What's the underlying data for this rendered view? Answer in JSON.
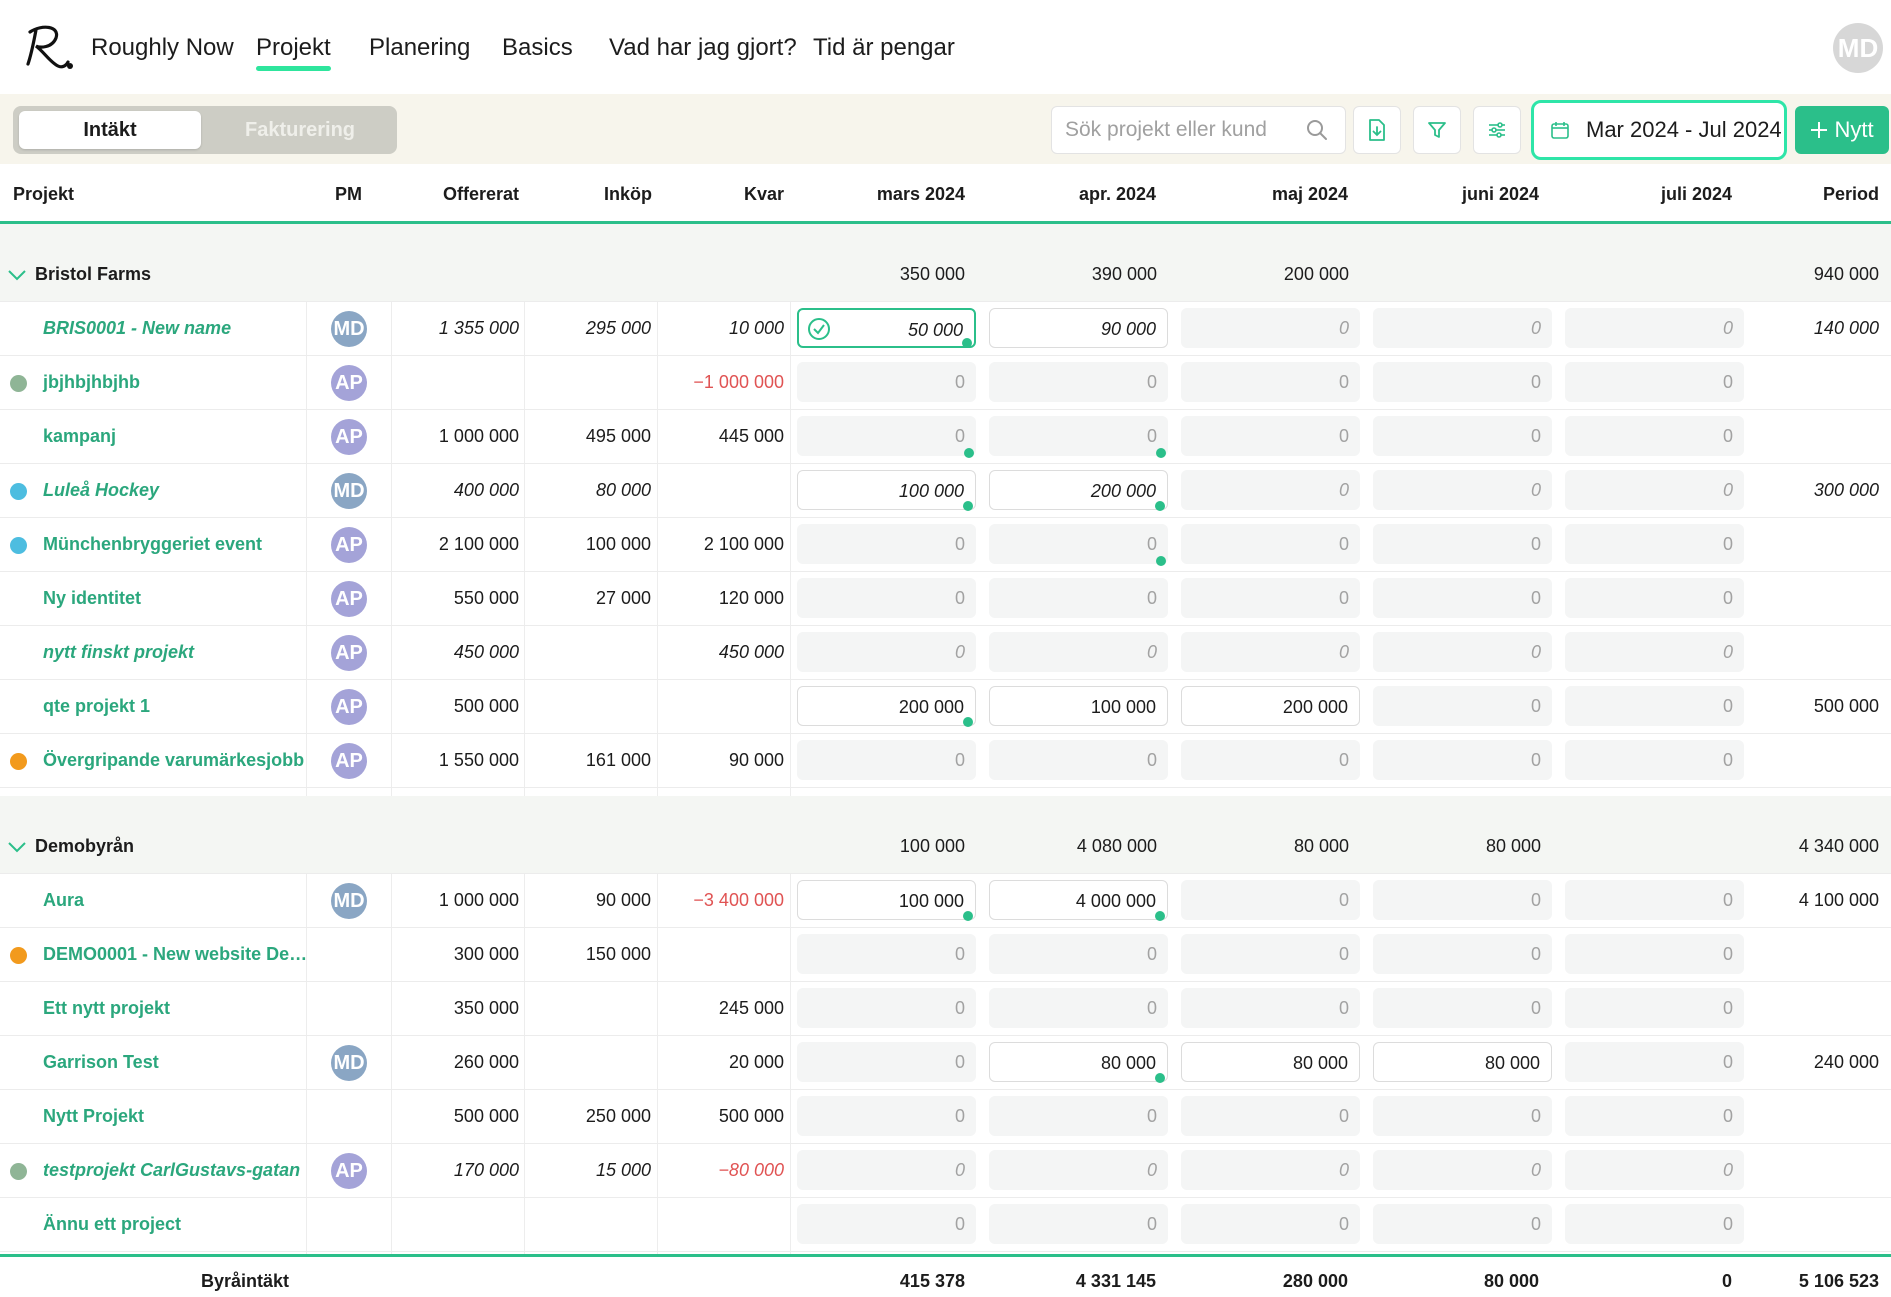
{
  "nav": {
    "logo_text": "R.",
    "items": [
      "Roughly Now",
      "Projekt",
      "Planering",
      "Basics",
      "Vad har jag gjort?",
      "Tid är pengar"
    ],
    "active_index": 1,
    "user_initials": "MD"
  },
  "toolbar": {
    "segment": [
      "Intäkt",
      "Fakturering"
    ],
    "search_placeholder": "Sök projekt eller kund",
    "date_range": "Mar 2024 - Jul 2024",
    "new_label": "Nytt"
  },
  "columns": [
    "Projekt",
    "PM",
    "Offererat",
    "Inköp",
    "Kvar",
    "mars 2024",
    "apr. 2024",
    "maj 2024",
    "juni 2024",
    "juli 2024",
    "Period"
  ],
  "colors": {
    "accent": "#2bbf8a",
    "negative": "#e05353",
    "avatar_md": "#8aa6c4",
    "avatar_ap": "#a4a3d8",
    "dot_green": "#8fb596",
    "dot_blue": "#4dbde0",
    "dot_orange": "#f29a1d"
  },
  "groups": [
    {
      "name": "Bristol Farms",
      "totals": [
        "350 000",
        "390 000",
        "200 000",
        "",
        ""
      ],
      "period": "940 000",
      "rows": [
        {
          "name": "BRIS0001 - New name",
          "italic": true,
          "dot": "",
          "pm": "MD",
          "offererat": "1 355 000",
          "inkop": "295 000",
          "kvar": "10 000",
          "kvar_neg": false,
          "months": [
            {
              "v": "50 000",
              "filled": true,
              "clock": true,
              "check": true
            },
            {
              "v": "90 000",
              "filled": true
            },
            {
              "v": "0"
            },
            {
              "v": "0"
            },
            {
              "v": "0"
            }
          ],
          "period": "140 000"
        },
        {
          "name": "jbjhbjhbjhb",
          "italic": false,
          "dot": "green",
          "pm": "AP",
          "offererat": "",
          "inkop": "",
          "kvar": "−1 000 000",
          "kvar_neg": true,
          "months": [
            {
              "v": "0"
            },
            {
              "v": "0"
            },
            {
              "v": "0"
            },
            {
              "v": "0"
            },
            {
              "v": "0"
            }
          ],
          "period": ""
        },
        {
          "name": "kampanj",
          "italic": false,
          "dot": "",
          "pm": "AP",
          "offererat": "1 000 000",
          "inkop": "495 000",
          "kvar": "445 000",
          "kvar_neg": false,
          "months": [
            {
              "v": "0",
              "clock": true
            },
            {
              "v": "0",
              "clock": true
            },
            {
              "v": "0"
            },
            {
              "v": "0"
            },
            {
              "v": "0"
            }
          ],
          "period": ""
        },
        {
          "name": "Luleå Hockey",
          "italic": true,
          "dot": "blue",
          "pm": "MD",
          "offererat": "400 000",
          "inkop": "80 000",
          "kvar": "",
          "kvar_neg": false,
          "months": [
            {
              "v": "100 000",
              "filled": true,
              "clock": true
            },
            {
              "v": "200 000",
              "filled": true,
              "clock": true
            },
            {
              "v": "0"
            },
            {
              "v": "0"
            },
            {
              "v": "0"
            }
          ],
          "period": "300 000"
        },
        {
          "name": "Münchenbryggeriet event",
          "italic": false,
          "dot": "blue",
          "pm": "AP",
          "offererat": "2 100 000",
          "inkop": "100 000",
          "kvar": "2 100 000",
          "kvar_neg": false,
          "months": [
            {
              "v": "0"
            },
            {
              "v": "0",
              "clock": true
            },
            {
              "v": "0"
            },
            {
              "v": "0"
            },
            {
              "v": "0"
            }
          ],
          "period": ""
        },
        {
          "name": "Ny identitet",
          "italic": false,
          "dot": "",
          "pm": "AP",
          "offererat": "550 000",
          "inkop": "27 000",
          "kvar": "120 000",
          "kvar_neg": false,
          "months": [
            {
              "v": "0"
            },
            {
              "v": "0"
            },
            {
              "v": "0"
            },
            {
              "v": "0"
            },
            {
              "v": "0"
            }
          ],
          "period": ""
        },
        {
          "name": "nytt finskt projekt",
          "italic": true,
          "dot": "",
          "pm": "AP",
          "offererat": "450 000",
          "inkop": "",
          "kvar": "450 000",
          "kvar_neg": false,
          "months": [
            {
              "v": "0"
            },
            {
              "v": "0"
            },
            {
              "v": "0"
            },
            {
              "v": "0"
            },
            {
              "v": "0"
            }
          ],
          "period": ""
        },
        {
          "name": "qte projekt 1",
          "italic": false,
          "dot": "",
          "pm": "AP",
          "offererat": "500 000",
          "inkop": "",
          "kvar": "",
          "kvar_neg": false,
          "months": [
            {
              "v": "200 000",
              "filled": true,
              "clock": true
            },
            {
              "v": "100 000",
              "filled": true
            },
            {
              "v": "200 000",
              "filled": true
            },
            {
              "v": "0"
            },
            {
              "v": "0"
            }
          ],
          "period": "500 000"
        },
        {
          "name": "Övergripande varumärkesjobb",
          "italic": false,
          "dot": "orange",
          "pm": "AP",
          "offererat": "1 550 000",
          "inkop": "161 000",
          "kvar": "90 000",
          "kvar_neg": false,
          "months": [
            {
              "v": "0"
            },
            {
              "v": "0"
            },
            {
              "v": "0"
            },
            {
              "v": "0"
            },
            {
              "v": "0"
            }
          ],
          "period": ""
        }
      ]
    },
    {
      "name": "Demobyrån",
      "totals": [
        "100 000",
        "4 080 000",
        "80 000",
        "80 000",
        ""
      ],
      "period": "4 340 000",
      "rows": [
        {
          "name": "Aura",
          "italic": false,
          "dot": "",
          "pm": "MD",
          "offererat": "1 000 000",
          "inkop": "90 000",
          "kvar": "−3 400 000",
          "kvar_neg": true,
          "months": [
            {
              "v": "100 000",
              "filled": true,
              "clock": true
            },
            {
              "v": "4 000 000",
              "filled": true,
              "clock": true
            },
            {
              "v": "0"
            },
            {
              "v": "0"
            },
            {
              "v": "0"
            }
          ],
          "period": "4 100 000"
        },
        {
          "name": "DEMO0001 - New website De…",
          "italic": false,
          "dot": "orange",
          "pm": "",
          "offererat": "300 000",
          "inkop": "150 000",
          "kvar": "",
          "kvar_neg": false,
          "months": [
            {
              "v": "0"
            },
            {
              "v": "0"
            },
            {
              "v": "0"
            },
            {
              "v": "0"
            },
            {
              "v": "0"
            }
          ],
          "period": ""
        },
        {
          "name": "Ett nytt projekt",
          "italic": false,
          "dot": "",
          "pm": "",
          "offererat": "350 000",
          "inkop": "",
          "kvar": "245 000",
          "kvar_neg": false,
          "months": [
            {
              "v": "0"
            },
            {
              "v": "0"
            },
            {
              "v": "0"
            },
            {
              "v": "0"
            },
            {
              "v": "0"
            }
          ],
          "period": ""
        },
        {
          "name": "Garrison Test",
          "italic": false,
          "dot": "",
          "pm": "MD",
          "offererat": "260 000",
          "inkop": "",
          "kvar": "20 000",
          "kvar_neg": false,
          "months": [
            {
              "v": "0"
            },
            {
              "v": "80 000",
              "filled": true,
              "clock": true
            },
            {
              "v": "80 000",
              "filled": true
            },
            {
              "v": "80 000",
              "filled": true
            },
            {
              "v": "0"
            }
          ],
          "period": "240 000"
        },
        {
          "name": "Nytt Projekt",
          "italic": false,
          "dot": "",
          "pm": "",
          "offererat": "500 000",
          "inkop": "250 000",
          "kvar": "500 000",
          "kvar_neg": false,
          "months": [
            {
              "v": "0"
            },
            {
              "v": "0"
            },
            {
              "v": "0"
            },
            {
              "v": "0"
            },
            {
              "v": "0"
            }
          ],
          "period": ""
        },
        {
          "name": "testprojekt CarlGustavs-gatan",
          "italic": true,
          "dot": "green",
          "pm": "AP",
          "offererat": "170 000",
          "inkop": "15 000",
          "kvar": "−80 000",
          "kvar_neg": true,
          "months": [
            {
              "v": "0"
            },
            {
              "v": "0"
            },
            {
              "v": "0"
            },
            {
              "v": "0"
            },
            {
              "v": "0"
            }
          ],
          "period": ""
        },
        {
          "name": "Ännu ett project",
          "italic": false,
          "dot": "",
          "pm": "",
          "offererat": "",
          "inkop": "",
          "kvar": "",
          "kvar_neg": false,
          "months": [
            {
              "v": "0"
            },
            {
              "v": "0"
            },
            {
              "v": "0"
            },
            {
              "v": "0"
            },
            {
              "v": "0"
            }
          ],
          "period": ""
        }
      ]
    }
  ],
  "footer": {
    "label": "Byråintäkt",
    "months": [
      "415 378",
      "4 331 145",
      "280 000",
      "80 000",
      "0"
    ],
    "period": "5 106 523"
  }
}
